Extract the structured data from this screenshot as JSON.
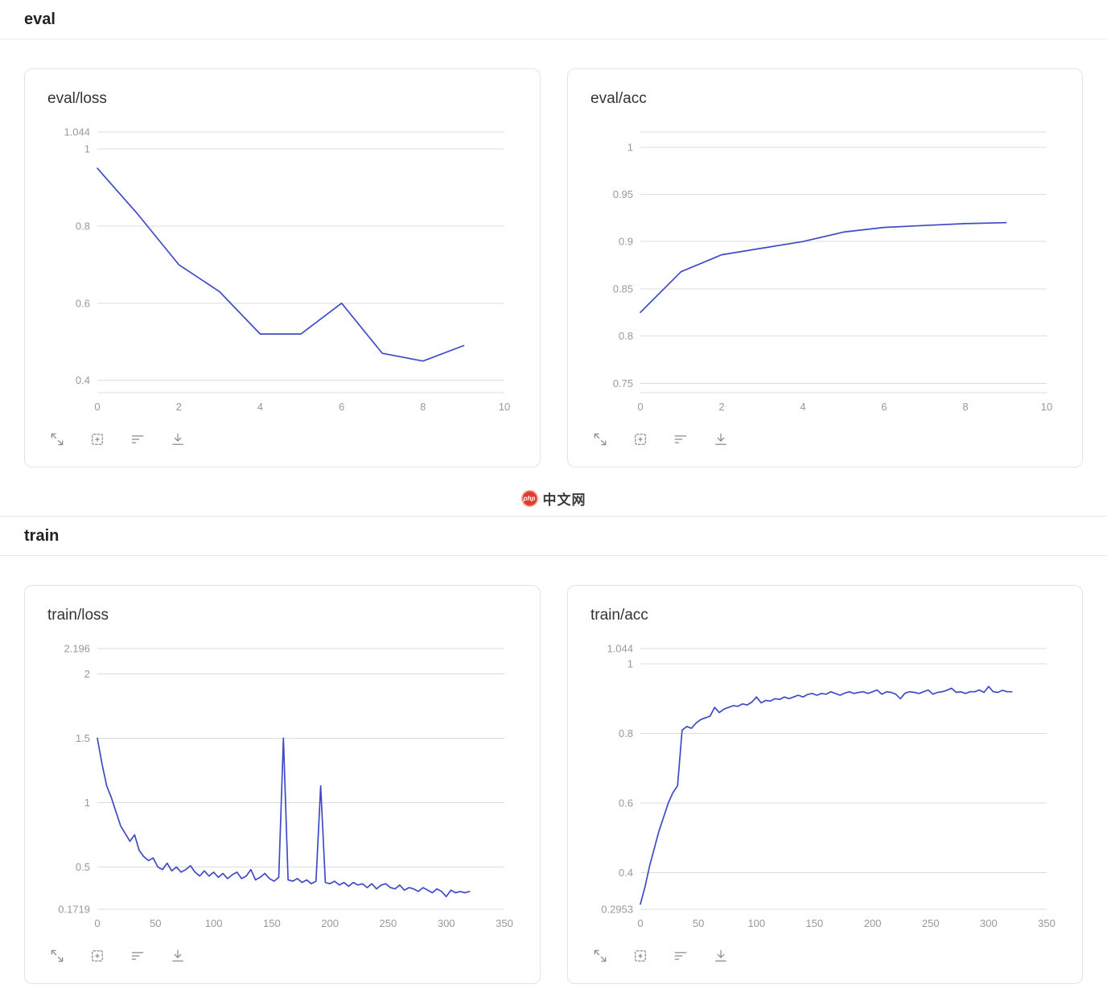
{
  "sections": {
    "eval": {
      "label": "eval"
    },
    "train": {
      "label": "train"
    }
  },
  "watermark": {
    "badge_text": "php",
    "site_text": "中文网"
  },
  "colors": {
    "line": "#3f4bc4",
    "grid": "#dcdcdc",
    "axis_label": "#999999"
  },
  "toolbar": {
    "icons": [
      "fullscreen-icon",
      "pin-icon",
      "smoothing-icon",
      "download-icon"
    ]
  },
  "chart_data": [
    {
      "id": "eval-loss",
      "type": "line",
      "title": "eval/loss",
      "section": "eval",
      "grid": true,
      "legend": false,
      "xlim": [
        0,
        10
      ],
      "ylim": [
        0.368,
        1.044
      ],
      "yticks": [
        {
          "v": 1.044,
          "label": "1.044"
        },
        {
          "v": 1.0,
          "label": "1"
        },
        {
          "v": 0.8,
          "label": "0.8"
        },
        {
          "v": 0.6,
          "label": "0.6"
        },
        {
          "v": 0.4,
          "label": "0.4"
        },
        {
          "v": 0.368,
          "label": ""
        }
      ],
      "xticks": [
        {
          "v": 0,
          "label": "0"
        },
        {
          "v": 2,
          "label": "2"
        },
        {
          "v": 4,
          "label": "4"
        },
        {
          "v": 6,
          "label": "6"
        },
        {
          "v": 8,
          "label": "8"
        },
        {
          "v": 10,
          "label": "10"
        }
      ],
      "x": [
        0,
        1,
        2,
        3,
        4,
        5,
        6,
        7,
        8,
        9
      ],
      "values": [
        0.95,
        0.83,
        0.7,
        0.63,
        0.52,
        0.52,
        0.6,
        0.47,
        0.45,
        0.49
      ]
    },
    {
      "id": "eval-acc",
      "type": "line",
      "title": "eval/acc",
      "section": "eval",
      "grid": true,
      "legend": false,
      "xlim": [
        0,
        10
      ],
      "ylim": [
        0.74,
        1.016
      ],
      "yticks": [
        {
          "v": 1.016,
          "label": ""
        },
        {
          "v": 1.0,
          "label": "1"
        },
        {
          "v": 0.95,
          "label": "0.95"
        },
        {
          "v": 0.9,
          "label": "0.9"
        },
        {
          "v": 0.85,
          "label": "0.85"
        },
        {
          "v": 0.8,
          "label": "0.8"
        },
        {
          "v": 0.75,
          "label": "0.75"
        },
        {
          "v": 0.74,
          "label": ""
        }
      ],
      "xticks": [
        {
          "v": 0,
          "label": "0"
        },
        {
          "v": 2,
          "label": "2"
        },
        {
          "v": 4,
          "label": "4"
        },
        {
          "v": 6,
          "label": "6"
        },
        {
          "v": 8,
          "label": "8"
        },
        {
          "v": 10,
          "label": "10"
        }
      ],
      "x": [
        0,
        1,
        2,
        3,
        4,
        5,
        6,
        7,
        8,
        9
      ],
      "values": [
        0.825,
        0.868,
        0.886,
        0.893,
        0.9,
        0.91,
        0.915,
        0.917,
        0.919,
        0.92
      ]
    },
    {
      "id": "train-loss",
      "type": "line",
      "title": "train/loss",
      "section": "train",
      "grid": true,
      "legend": false,
      "xlim": [
        0,
        350
      ],
      "ylim": [
        0.1719,
        2.196
      ],
      "yticks": [
        {
          "v": 2.196,
          "label": "2.196"
        },
        {
          "v": 2.0,
          "label": "2"
        },
        {
          "v": 1.5,
          "label": "1.5"
        },
        {
          "v": 1.0,
          "label": "1"
        },
        {
          "v": 0.5,
          "label": "0.5"
        },
        {
          "v": 0.1719,
          "label": "0.1719"
        }
      ],
      "xticks": [
        {
          "v": 0,
          "label": "0"
        },
        {
          "v": 50,
          "label": "50"
        },
        {
          "v": 100,
          "label": "100"
        },
        {
          "v": 150,
          "label": "150"
        },
        {
          "v": 200,
          "label": "200"
        },
        {
          "v": 250,
          "label": "250"
        },
        {
          "v": 300,
          "label": "300"
        },
        {
          "v": 350,
          "label": "350"
        }
      ],
      "x": [
        0,
        4,
        8,
        12,
        16,
        20,
        24,
        28,
        32,
        36,
        40,
        44,
        48,
        52,
        56,
        60,
        64,
        68,
        72,
        76,
        80,
        84,
        88,
        92,
        96,
        100,
        104,
        108,
        112,
        116,
        120,
        124,
        128,
        132,
        136,
        140,
        144,
        148,
        152,
        156,
        160,
        164,
        168,
        172,
        176,
        180,
        184,
        188,
        192,
        196,
        200,
        204,
        208,
        212,
        216,
        220,
        224,
        228,
        232,
        236,
        240,
        244,
        248,
        252,
        256,
        260,
        264,
        268,
        272,
        276,
        280,
        284,
        288,
        292,
        296,
        300,
        304,
        308,
        312,
        316,
        320
      ],
      "values": [
        1.5,
        1.3,
        1.13,
        1.04,
        0.93,
        0.82,
        0.76,
        0.7,
        0.75,
        0.63,
        0.58,
        0.55,
        0.57,
        0.5,
        0.48,
        0.53,
        0.47,
        0.5,
        0.46,
        0.48,
        0.51,
        0.46,
        0.43,
        0.47,
        0.43,
        0.46,
        0.42,
        0.45,
        0.41,
        0.44,
        0.46,
        0.41,
        0.43,
        0.48,
        0.4,
        0.42,
        0.45,
        0.41,
        0.39,
        0.42,
        1.5,
        0.4,
        0.39,
        0.41,
        0.38,
        0.4,
        0.37,
        0.39,
        1.13,
        0.38,
        0.37,
        0.39,
        0.36,
        0.38,
        0.35,
        0.38,
        0.36,
        0.37,
        0.34,
        0.37,
        0.33,
        0.36,
        0.37,
        0.34,
        0.33,
        0.36,
        0.32,
        0.34,
        0.33,
        0.31,
        0.34,
        0.32,
        0.3,
        0.33,
        0.31,
        0.27,
        0.32,
        0.3,
        0.31,
        0.3,
        0.31
      ]
    },
    {
      "id": "train-acc",
      "type": "line",
      "title": "train/acc",
      "section": "train",
      "grid": true,
      "legend": false,
      "xlim": [
        0,
        350
      ],
      "ylim": [
        0.2953,
        1.044
      ],
      "yticks": [
        {
          "v": 1.044,
          "label": "1.044"
        },
        {
          "v": 1.0,
          "label": "1"
        },
        {
          "v": 0.8,
          "label": "0.8"
        },
        {
          "v": 0.6,
          "label": "0.6"
        },
        {
          "v": 0.4,
          "label": "0.4"
        },
        {
          "v": 0.2953,
          "label": "0.2953"
        }
      ],
      "xticks": [
        {
          "v": 0,
          "label": "0"
        },
        {
          "v": 50,
          "label": "50"
        },
        {
          "v": 100,
          "label": "100"
        },
        {
          "v": 150,
          "label": "150"
        },
        {
          "v": 200,
          "label": "200"
        },
        {
          "v": 250,
          "label": "250"
        },
        {
          "v": 300,
          "label": "300"
        },
        {
          "v": 350,
          "label": "350"
        }
      ],
      "x": [
        0,
        4,
        8,
        12,
        16,
        20,
        24,
        28,
        32,
        36,
        40,
        44,
        48,
        52,
        56,
        60,
        64,
        68,
        72,
        76,
        80,
        84,
        88,
        92,
        96,
        100,
        104,
        108,
        112,
        116,
        120,
        124,
        128,
        132,
        136,
        140,
        144,
        148,
        152,
        156,
        160,
        164,
        168,
        172,
        176,
        180,
        184,
        188,
        192,
        196,
        200,
        204,
        208,
        212,
        216,
        220,
        224,
        228,
        232,
        236,
        240,
        244,
        248,
        252,
        256,
        260,
        264,
        268,
        272,
        276,
        280,
        284,
        288,
        292,
        296,
        300,
        304,
        308,
        312,
        316,
        320
      ],
      "values": [
        0.31,
        0.36,
        0.42,
        0.47,
        0.52,
        0.56,
        0.6,
        0.63,
        0.65,
        0.81,
        0.82,
        0.815,
        0.83,
        0.84,
        0.845,
        0.85,
        0.875,
        0.86,
        0.87,
        0.875,
        0.88,
        0.878,
        0.885,
        0.882,
        0.89,
        0.905,
        0.888,
        0.895,
        0.893,
        0.9,
        0.898,
        0.905,
        0.9,
        0.905,
        0.91,
        0.905,
        0.912,
        0.915,
        0.91,
        0.915,
        0.913,
        0.92,
        0.915,
        0.91,
        0.916,
        0.92,
        0.915,
        0.918,
        0.92,
        0.915,
        0.92,
        0.925,
        0.913,
        0.92,
        0.918,
        0.913,
        0.9,
        0.916,
        0.92,
        0.918,
        0.915,
        0.92,
        0.925,
        0.913,
        0.918,
        0.92,
        0.924,
        0.93,
        0.918,
        0.92,
        0.915,
        0.92,
        0.92,
        0.925,
        0.918,
        0.935,
        0.92,
        0.918,
        0.924,
        0.92,
        0.92
      ]
    }
  ]
}
